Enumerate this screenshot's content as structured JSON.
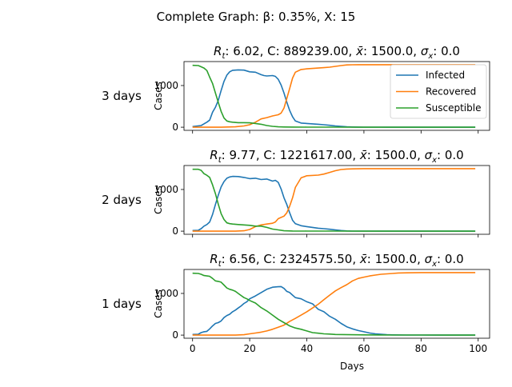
{
  "title": "Complete Graph: β: 0.35%, X: 15",
  "colors": {
    "infected": "#1f77b4",
    "recovered": "#ff7f0e",
    "susceptible": "#2ca02c"
  },
  "legend": [
    "Infected",
    "Recovered",
    "Susceptible"
  ],
  "chart_data": [
    {
      "type": "line",
      "row_label": "3 days",
      "title": "R_t: 6.02, C: 889239.00, x̄: 1500.0, σ_x: 0.0",
      "title_parts": {
        "rt": "6.02",
        "c": "889239.00",
        "xbar": "1500.0",
        "sigma": "0.0"
      },
      "xlabel": "",
      "ylabel": "Cases",
      "xlim": [
        -3,
        104
      ],
      "ylim": [
        -75,
        1575
      ],
      "xticks": [
        0,
        20,
        40,
        60,
        80,
        100
      ],
      "yticks": [
        0,
        1000
      ],
      "legend_position": "upper right",
      "series": [
        {
          "name": "Infected",
          "x": [
            0,
            3,
            5,
            6,
            7,
            8,
            9,
            10,
            11,
            12,
            13,
            14,
            16,
            18,
            20,
            22,
            24,
            25,
            26,
            28,
            29,
            30,
            31,
            32,
            33,
            34,
            35,
            36,
            38,
            40,
            42,
            44,
            46,
            48,
            50,
            52,
            54,
            56,
            58,
            60,
            62,
            64,
            66,
            68,
            70,
            75,
            80,
            85,
            90,
            95,
            99
          ],
          "y": [
            15,
            40,
            120,
            170,
            360,
            480,
            640,
            880,
            1100,
            1250,
            1330,
            1365,
            1375,
            1370,
            1330,
            1320,
            1260,
            1240,
            1230,
            1240,
            1220,
            1150,
            1010,
            820,
            600,
            400,
            250,
            150,
            100,
            90,
            80,
            70,
            60,
            45,
            30,
            20,
            10,
            5,
            3,
            2,
            1,
            1,
            1,
            0,
            0,
            0,
            0,
            0,
            0,
            0,
            0
          ]
        },
        {
          "name": "Recovered",
          "x": [
            0,
            5,
            10,
            15,
            18,
            20,
            22,
            24,
            26,
            28,
            30,
            31,
            32,
            33,
            34,
            35,
            36,
            38,
            40,
            42,
            44,
            46,
            48,
            50,
            52,
            54,
            56,
            58,
            60,
            65,
            70,
            75,
            80,
            85,
            90,
            95,
            99
          ],
          "y": [
            0,
            0,
            0,
            10,
            30,
            60,
            120,
            200,
            230,
            270,
            300,
            340,
            460,
            690,
            930,
            1180,
            1320,
            1385,
            1400,
            1410,
            1420,
            1430,
            1440,
            1460,
            1480,
            1495,
            1498,
            1500,
            1500,
            1500,
            1500,
            1500,
            1500,
            1500,
            1500,
            1500,
            1500
          ]
        },
        {
          "name": "Susceptible",
          "x": [
            0,
            2,
            3,
            4,
            5,
            6,
            7,
            8,
            9,
            10,
            11,
            12,
            13,
            14,
            16,
            18,
            20,
            22,
            24,
            26,
            28,
            30,
            32,
            35,
            40,
            50,
            60,
            70,
            80,
            90,
            99
          ],
          "y": [
            1485,
            1480,
            1450,
            1420,
            1360,
            1200,
            1050,
            820,
            600,
            380,
            220,
            150,
            130,
            120,
            110,
            110,
            105,
            90,
            70,
            40,
            20,
            10,
            5,
            3,
            2,
            1,
            0,
            0,
            0,
            0,
            0
          ]
        }
      ]
    },
    {
      "type": "line",
      "row_label": "2 days",
      "title": "R_t: 9.77, C: 1221617.00, x̄: 1500.0, σ_x: 0.0",
      "title_parts": {
        "rt": "9.77",
        "c": "1221617.00",
        "xbar": "1500.0",
        "sigma": "0.0"
      },
      "xlabel": "",
      "ylabel": "Cases",
      "xlim": [
        -3,
        104
      ],
      "ylim": [
        -75,
        1575
      ],
      "xticks": [
        0,
        20,
        40,
        60,
        80,
        100
      ],
      "yticks": [
        0,
        1000
      ],
      "series": [
        {
          "name": "Infected",
          "x": [
            0,
            2,
            3,
            4,
            5,
            6,
            7,
            8,
            9,
            10,
            11,
            12,
            13,
            14,
            16,
            18,
            20,
            22,
            24,
            26,
            28,
            29,
            30,
            31,
            32,
            33,
            34,
            35,
            36,
            38,
            40,
            42,
            44,
            46,
            48,
            50,
            52,
            54,
            56,
            60,
            65,
            70,
            80,
            90,
            99
          ],
          "y": [
            15,
            20,
            60,
            120,
            160,
            220,
            400,
            640,
            860,
            1060,
            1190,
            1270,
            1300,
            1315,
            1310,
            1290,
            1260,
            1270,
            1240,
            1250,
            1200,
            1220,
            1170,
            1010,
            800,
            640,
            440,
            260,
            180,
            130,
            110,
            90,
            70,
            60,
            45,
            30,
            15,
            5,
            2,
            1,
            0,
            0,
            0,
            0,
            0
          ]
        },
        {
          "name": "Recovered",
          "x": [
            0,
            5,
            10,
            15,
            18,
            20,
            22,
            24,
            26,
            28,
            29,
            30,
            31,
            32,
            33,
            34,
            35,
            36,
            38,
            40,
            44,
            46,
            48,
            50,
            52,
            54,
            56,
            60,
            65,
            70,
            75,
            80,
            90,
            99
          ],
          "y": [
            0,
            0,
            0,
            0,
            10,
            40,
            110,
            150,
            170,
            190,
            220,
            300,
            330,
            360,
            440,
            600,
            800,
            1050,
            1280,
            1330,
            1345,
            1370,
            1410,
            1450,
            1480,
            1490,
            1495,
            1500,
            1500,
            1500,
            1500,
            1500,
            1500,
            1500
          ]
        },
        {
          "name": "Susceptible",
          "x": [
            0,
            2,
            3,
            4,
            5,
            6,
            7,
            8,
            9,
            10,
            11,
            12,
            13,
            14,
            16,
            18,
            20,
            22,
            24,
            26,
            28,
            30,
            32,
            35,
            40,
            50,
            60,
            70,
            80,
            90,
            99
          ],
          "y": [
            1485,
            1485,
            1460,
            1380,
            1340,
            1290,
            1110,
            900,
            650,
            420,
            280,
            200,
            180,
            170,
            160,
            150,
            140,
            120,
            120,
            90,
            50,
            30,
            10,
            4,
            2,
            1,
            0,
            0,
            0,
            0,
            0
          ]
        }
      ]
    },
    {
      "type": "line",
      "row_label": "1 days",
      "title": "R_t: 6.56, C: 2324575.50, x̄: 1500.0, σ_x: 0.0",
      "title_parts": {
        "rt": "6.56",
        "c": "2324575.50",
        "xbar": "1500.0",
        "sigma": "0.0"
      },
      "xlabel": "Days",
      "ylabel": "Cases",
      "xlim": [
        -3,
        104
      ],
      "ylim": [
        -75,
        1575
      ],
      "xticks": [
        0,
        20,
        40,
        60,
        80,
        100
      ],
      "yticks": [
        0,
        1000
      ],
      "series": [
        {
          "name": "Infected",
          "x": [
            0,
            2,
            3,
            4,
            5,
            6,
            7,
            8,
            9,
            10,
            11,
            12,
            13,
            14,
            15,
            16,
            17,
            18,
            19,
            20,
            22,
            24,
            26,
            28,
            30,
            31,
            32,
            33,
            34,
            35,
            36,
            38,
            40,
            42,
            44,
            46,
            48,
            50,
            52,
            54,
            56,
            58,
            60,
            62,
            64,
            66,
            68,
            70,
            75,
            80,
            85,
            90,
            95,
            99
          ],
          "y": [
            15,
            20,
            60,
            80,
            90,
            150,
            220,
            280,
            300,
            340,
            420,
            470,
            500,
            560,
            600,
            650,
            700,
            760,
            800,
            870,
            940,
            1020,
            1100,
            1150,
            1160,
            1165,
            1120,
            1050,
            1020,
            960,
            900,
            870,
            800,
            750,
            620,
            560,
            450,
            380,
            280,
            200,
            150,
            110,
            80,
            50,
            30,
            20,
            10,
            5,
            2,
            1,
            0,
            0,
            0,
            0
          ]
        },
        {
          "name": "Recovered",
          "x": [
            0,
            5,
            10,
            15,
            18,
            20,
            22,
            24,
            26,
            28,
            30,
            32,
            34,
            36,
            38,
            40,
            42,
            44,
            46,
            48,
            50,
            52,
            54,
            56,
            58,
            60,
            62,
            64,
            66,
            68,
            70,
            72,
            75,
            80,
            85,
            90,
            95,
            99
          ],
          "y": [
            0,
            0,
            0,
            0,
            10,
            30,
            50,
            70,
            100,
            140,
            190,
            240,
            330,
            400,
            480,
            560,
            650,
            740,
            850,
            960,
            1060,
            1140,
            1210,
            1300,
            1360,
            1390,
            1420,
            1440,
            1460,
            1470,
            1480,
            1490,
            1495,
            1500,
            1500,
            1500,
            1500,
            1500
          ]
        },
        {
          "name": "Susceptible",
          "x": [
            0,
            2,
            3,
            4,
            5,
            6,
            7,
            8,
            9,
            10,
            11,
            12,
            13,
            14,
            15,
            16,
            17,
            18,
            19,
            20,
            22,
            24,
            26,
            28,
            30,
            32,
            34,
            36,
            38,
            40,
            42,
            44,
            46,
            48,
            50,
            55,
            60,
            65,
            70,
            80,
            90,
            99
          ],
          "y": [
            1485,
            1480,
            1460,
            1430,
            1420,
            1410,
            1360,
            1300,
            1290,
            1270,
            1200,
            1130,
            1100,
            1080,
            1050,
            1000,
            950,
            900,
            870,
            830,
            770,
            660,
            580,
            480,
            380,
            300,
            220,
            170,
            140,
            100,
            60,
            45,
            30,
            25,
            15,
            10,
            5,
            3,
            2,
            1,
            0,
            0
          ]
        }
      ]
    }
  ]
}
